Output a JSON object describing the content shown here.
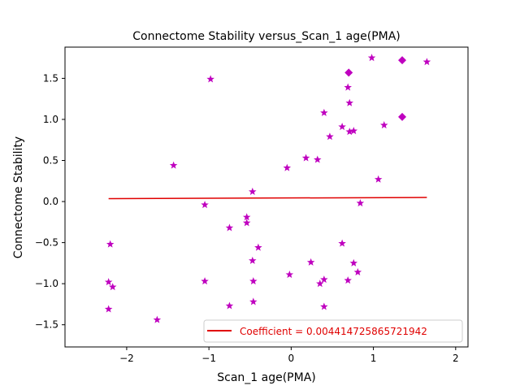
{
  "chart_data": {
    "type": "scatter",
    "title": "Connectome Stability versus_Scan_1 age(PMA)",
    "xlabel": "Scan_1 age(PMA)",
    "ylabel": "Connectome Stability",
    "xlim": [
      -2.75,
      2.15
    ],
    "ylim": [
      -1.77,
      1.88
    ],
    "xticks": [
      -2,
      -1,
      0,
      1,
      2
    ],
    "yticks": [
      -1.5,
      -1.0,
      -0.5,
      0.0,
      0.5,
      1.0,
      1.5
    ],
    "xtick_labels": [
      "−2",
      "−1",
      "0",
      "1",
      "2"
    ],
    "ytick_labels": [
      "−1.5",
      "−1.0",
      "−0.5",
      "0.0",
      "0.5",
      "1.0",
      "1.5"
    ],
    "grid": false,
    "legend_position": "lower right",
    "marker_color": "#bf00bf",
    "line_color": "#e00000",
    "series": [
      {
        "marker": "star",
        "points": [
          [
            -2.2,
            -0.52
          ],
          [
            -2.22,
            -0.98
          ],
          [
            -2.17,
            -1.04
          ],
          [
            -2.22,
            -1.31
          ],
          [
            -1.63,
            -1.44
          ],
          [
            -1.43,
            0.44
          ],
          [
            -1.05,
            -0.04
          ],
          [
            -1.05,
            -0.97
          ],
          [
            -0.98,
            1.49
          ],
          [
            -0.75,
            -0.32
          ],
          [
            -0.75,
            -1.27
          ],
          [
            -0.54,
            -0.19
          ],
          [
            -0.54,
            -0.26
          ],
          [
            -0.47,
            0.12
          ],
          [
            -0.47,
            -0.72
          ],
          [
            -0.46,
            -0.97
          ],
          [
            -0.46,
            -1.22
          ],
          [
            -0.4,
            -0.56
          ],
          [
            -0.05,
            0.41
          ],
          [
            -0.02,
            -0.89
          ],
          [
            0.18,
            0.53
          ],
          [
            0.24,
            -0.74
          ],
          [
            0.32,
            0.51
          ],
          [
            0.35,
            -1.0
          ],
          [
            0.4,
            -0.95
          ],
          [
            0.4,
            1.08
          ],
          [
            0.4,
            -1.28
          ],
          [
            0.47,
            0.79
          ],
          [
            0.62,
            0.91
          ],
          [
            0.62,
            -0.51
          ],
          [
            0.69,
            1.39
          ],
          [
            0.69,
            -0.96
          ],
          [
            0.71,
            1.2
          ],
          [
            0.71,
            0.85
          ],
          [
            0.76,
            0.86
          ],
          [
            0.76,
            -0.75
          ],
          [
            0.81,
            -0.86
          ],
          [
            0.84,
            -0.02
          ],
          [
            0.98,
            1.75
          ],
          [
            1.06,
            0.27
          ],
          [
            1.13,
            0.93
          ],
          [
            1.65,
            1.7
          ]
        ]
      },
      {
        "marker": "diamond",
        "points": [
          [
            0.7,
            1.57
          ],
          [
            1.35,
            1.72
          ],
          [
            1.35,
            1.03
          ]
        ]
      }
    ],
    "regression": {
      "x": [
        -2.22,
        1.65
      ],
      "y": [
        0.035,
        0.05
      ],
      "label": "Coefficient = 0.004414725865721942"
    }
  }
}
